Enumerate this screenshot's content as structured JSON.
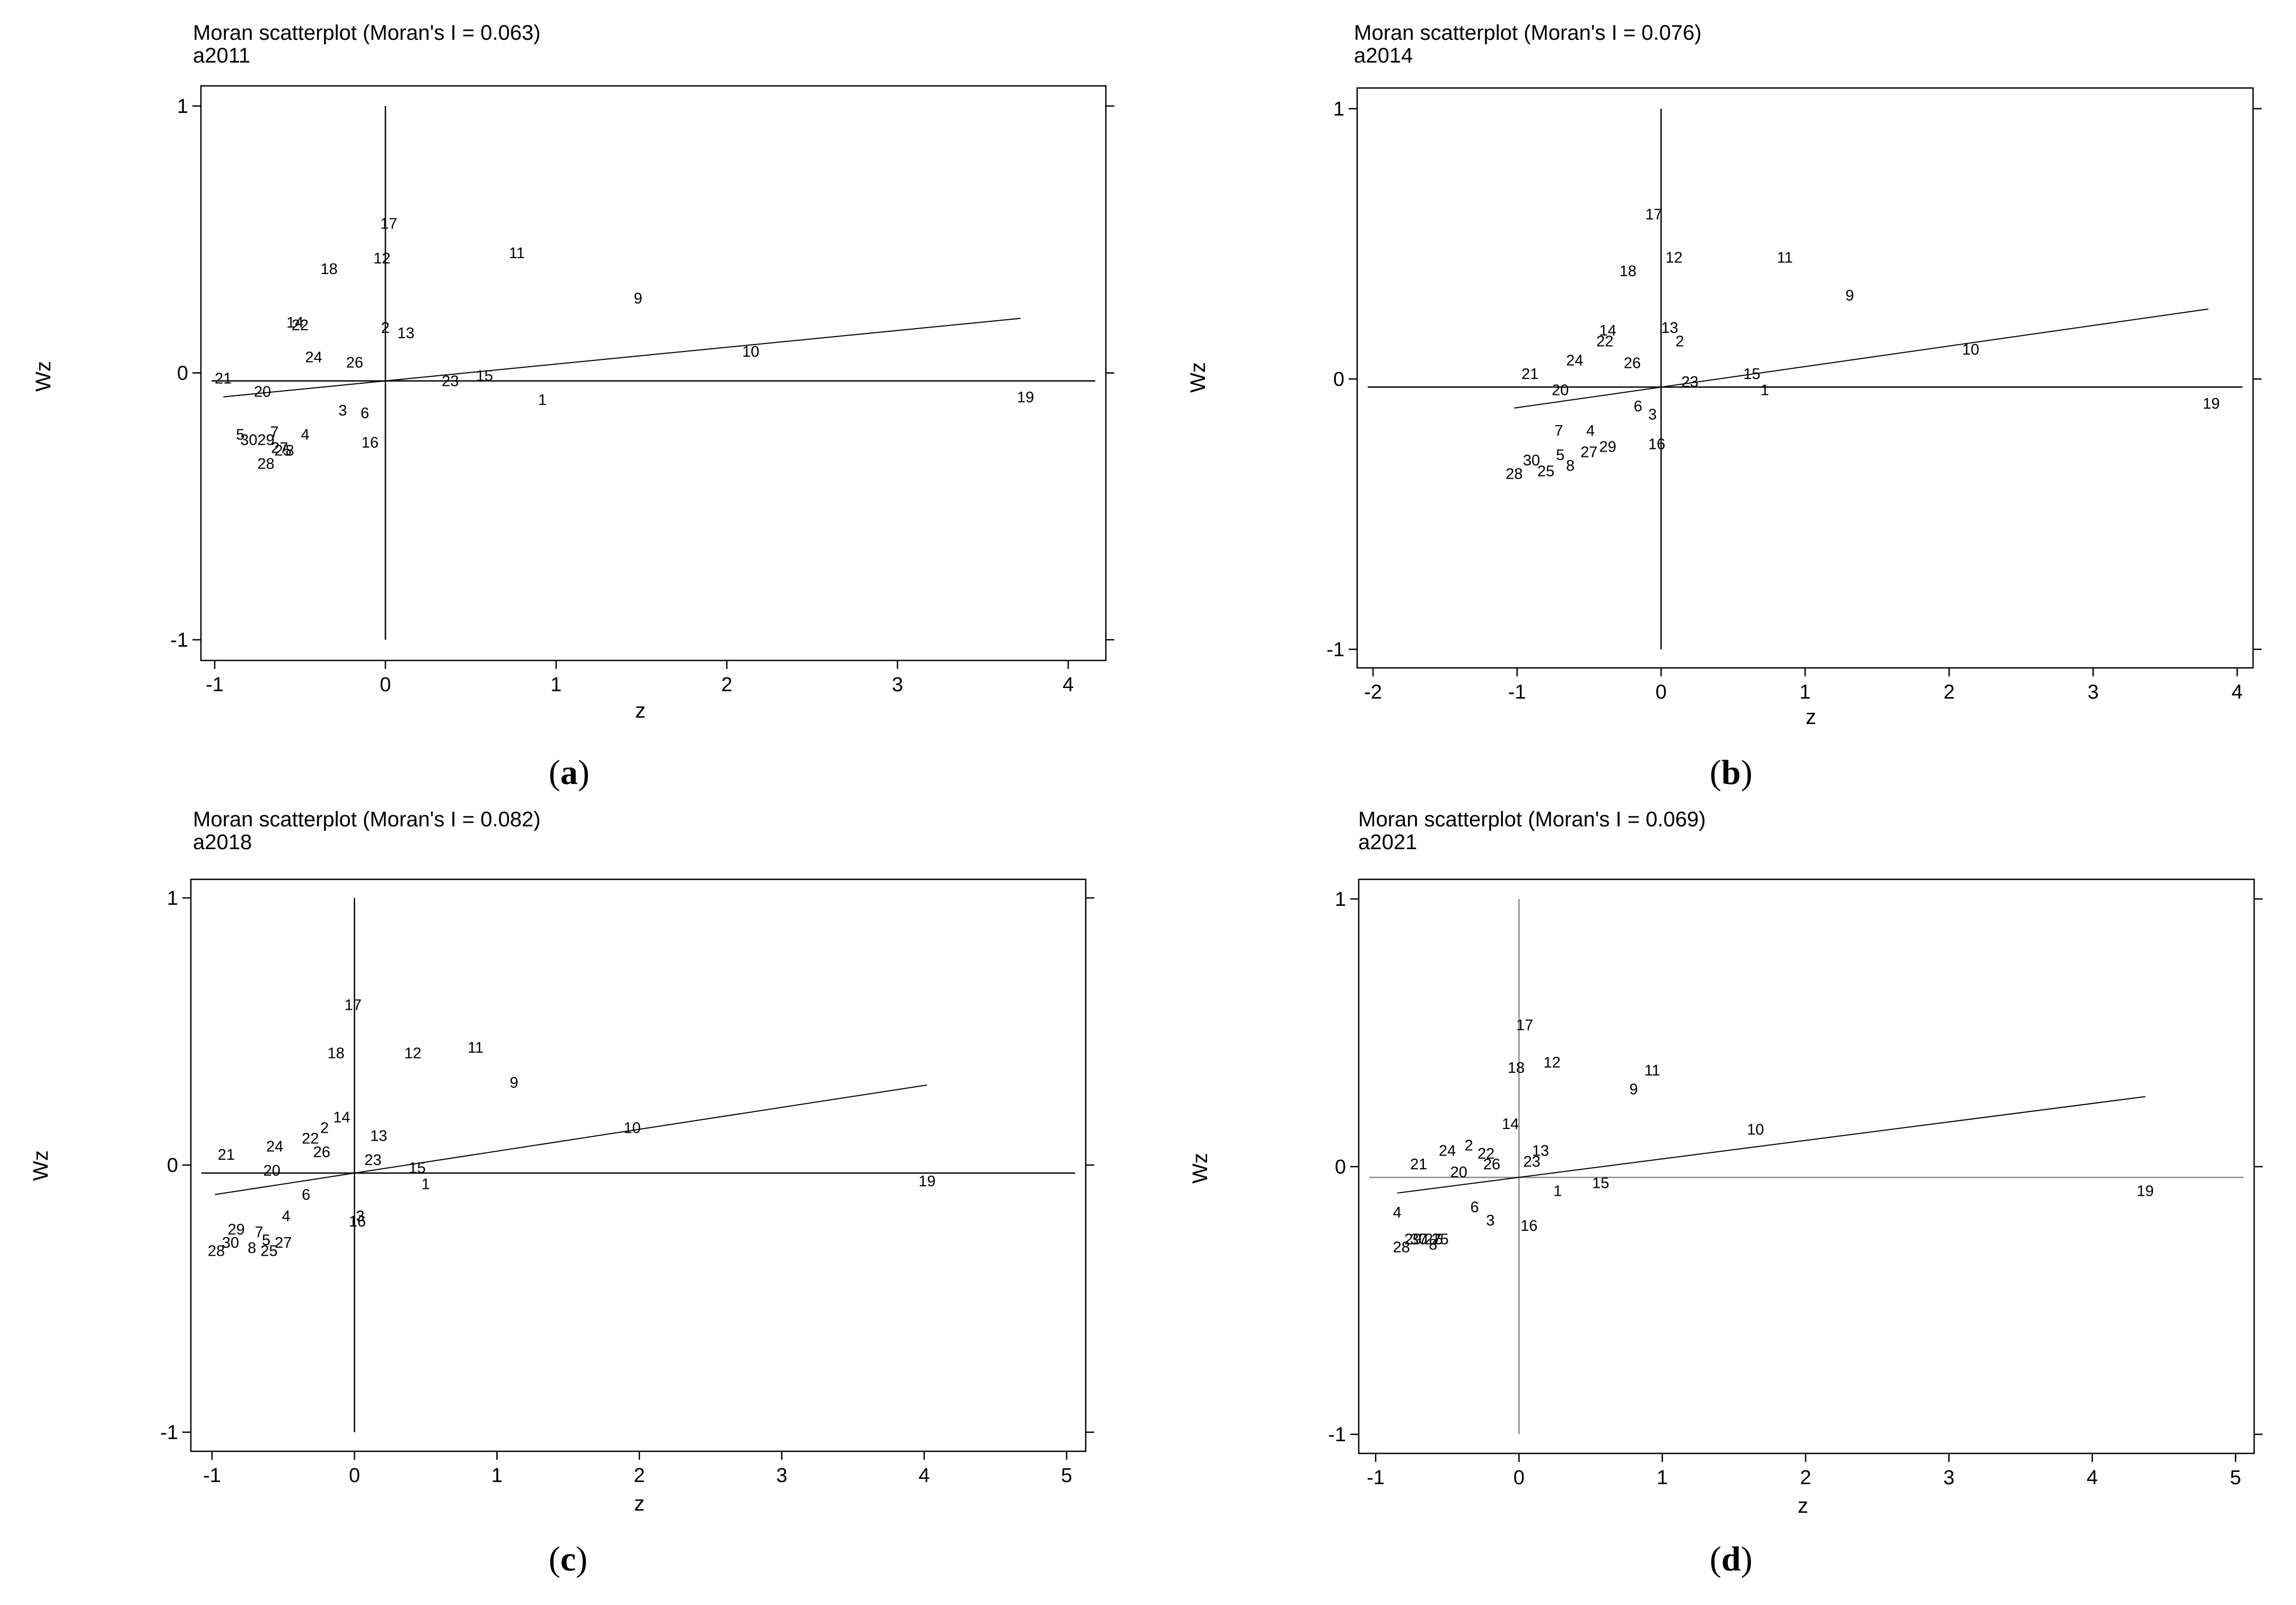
{
  "chart_data": [
    {
      "type": "scatter",
      "panel": "a",
      "title": "Moran scatterplot (Moran's I = 0.063)",
      "subtitle": "a2011",
      "xlabel": "z",
      "ylabel": "Wz",
      "xlim": [
        -1,
        4
      ],
      "ylim": [
        -1,
        1
      ],
      "xticks": [
        -1,
        0,
        1,
        2,
        3,
        4
      ],
      "yticks": [
        -1,
        0,
        1
      ],
      "moran_i": 0.063,
      "intercept": -0.03,
      "fit_x": [
        -0.95,
        3.72
      ],
      "points": [
        {
          "label": "1",
          "x": 0.92,
          "y": -0.1
        },
        {
          "label": "2",
          "x": 0.0,
          "y": 0.17
        },
        {
          "label": "3",
          "x": -0.25,
          "y": -0.14
        },
        {
          "label": "4",
          "x": -0.47,
          "y": -0.23
        },
        {
          "label": "5",
          "x": -0.85,
          "y": -0.23
        },
        {
          "label": "6",
          "x": -0.12,
          "y": -0.15
        },
        {
          "label": "7",
          "x": -0.65,
          "y": -0.22
        },
        {
          "label": "8",
          "x": -0.56,
          "y": -0.29
        },
        {
          "label": "9",
          "x": 1.48,
          "y": 0.28
        },
        {
          "label": "10",
          "x": 2.14,
          "y": 0.08
        },
        {
          "label": "11",
          "x": 0.77,
          "y": 0.45
        },
        {
          "label": "12",
          "x": -0.02,
          "y": 0.43
        },
        {
          "label": "13",
          "x": 0.12,
          "y": 0.15
        },
        {
          "label": "14",
          "x": -0.53,
          "y": 0.19
        },
        {
          "label": "15",
          "x": 0.58,
          "y": -0.01
        },
        {
          "label": "16",
          "x": -0.09,
          "y": -0.26
        },
        {
          "label": "17",
          "x": 0.02,
          "y": 0.56
        },
        {
          "label": "18",
          "x": -0.33,
          "y": 0.39
        },
        {
          "label": "19",
          "x": 3.75,
          "y": -0.09
        },
        {
          "label": "20",
          "x": -0.72,
          "y": -0.07
        },
        {
          "label": "21",
          "x": -0.95,
          "y": -0.02
        },
        {
          "label": "22",
          "x": -0.5,
          "y": 0.18
        },
        {
          "label": "23",
          "x": 0.38,
          "y": -0.03
        },
        {
          "label": "24",
          "x": -0.42,
          "y": 0.06
        },
        {
          "label": "25",
          "x": -0.6,
          "y": -0.29
        },
        {
          "label": "26",
          "x": -0.18,
          "y": 0.04
        },
        {
          "label": "27",
          "x": -0.62,
          "y": -0.28
        },
        {
          "label": "28",
          "x": -0.7,
          "y": -0.34
        },
        {
          "label": "29",
          "x": -0.7,
          "y": -0.25
        },
        {
          "label": "30",
          "x": -0.8,
          "y": -0.25
        }
      ]
    },
    {
      "type": "scatter",
      "panel": "b",
      "title": "Moran scatterplot (Moran's I = 0.076)",
      "subtitle": "a2014",
      "xlabel": "z",
      "ylabel": "Wz",
      "xlim": [
        -2,
        4
      ],
      "ylim": [
        -1,
        1
      ],
      "xticks": [
        -2,
        -1,
        0,
        1,
        2,
        3,
        4
      ],
      "yticks": [
        -1,
        0,
        1
      ],
      "moran_i": 0.076,
      "intercept": -0.03,
      "fit_x": [
        -1.02,
        3.8
      ],
      "points": [
        {
          "label": "1",
          "x": 0.72,
          "y": -0.04
        },
        {
          "label": "2",
          "x": 0.13,
          "y": 0.14
        },
        {
          "label": "3",
          "x": -0.06,
          "y": -0.13
        },
        {
          "label": "4",
          "x": -0.49,
          "y": -0.19
        },
        {
          "label": "5",
          "x": -0.7,
          "y": -0.28
        },
        {
          "label": "6",
          "x": -0.16,
          "y": -0.1
        },
        {
          "label": "7",
          "x": -0.71,
          "y": -0.19
        },
        {
          "label": "8",
          "x": -0.63,
          "y": -0.32
        },
        {
          "label": "9",
          "x": 1.31,
          "y": 0.31
        },
        {
          "label": "10",
          "x": 2.15,
          "y": 0.11
        },
        {
          "label": "11",
          "x": 0.86,
          "y": 0.45
        },
        {
          "label": "12",
          "x": 0.09,
          "y": 0.45
        },
        {
          "label": "13",
          "x": 0.06,
          "y": 0.19
        },
        {
          "label": "14",
          "x": -0.37,
          "y": 0.18
        },
        {
          "label": "15",
          "x": 0.63,
          "y": 0.02
        },
        {
          "label": "16",
          "x": -0.03,
          "y": -0.24
        },
        {
          "label": "17",
          "x": -0.05,
          "y": 0.61
        },
        {
          "label": "18",
          "x": -0.23,
          "y": 0.4
        },
        {
          "label": "19",
          "x": 3.82,
          "y": -0.09
        },
        {
          "label": "20",
          "x": -0.7,
          "y": -0.04
        },
        {
          "label": "21",
          "x": -0.91,
          "y": 0.02
        },
        {
          "label": "22",
          "x": -0.39,
          "y": 0.14
        },
        {
          "label": "23",
          "x": 0.2,
          "y": -0.01
        },
        {
          "label": "24",
          "x": -0.6,
          "y": 0.07
        },
        {
          "label": "25",
          "x": -0.8,
          "y": -0.34
        },
        {
          "label": "26",
          "x": -0.2,
          "y": 0.06
        },
        {
          "label": "27",
          "x": -0.5,
          "y": -0.27
        },
        {
          "label": "28",
          "x": -1.02,
          "y": -0.35
        },
        {
          "label": "29",
          "x": -0.37,
          "y": -0.25
        },
        {
          "label": "30",
          "x": -0.9,
          "y": -0.3
        }
      ]
    },
    {
      "type": "scatter",
      "panel": "c",
      "title": "Moran scatterplot (Moran's I = 0.082)",
      "subtitle": "a2018",
      "xlabel": "z",
      "ylabel": "Wz",
      "xlim": [
        -1,
        5
      ],
      "ylim": [
        -1,
        1
      ],
      "xticks": [
        -1,
        0,
        1,
        2,
        3,
        4,
        5
      ],
      "yticks": [
        -1,
        0,
        1
      ],
      "moran_i": 0.082,
      "intercept": -0.03,
      "fit_x": [
        -0.98,
        4.02
      ],
      "points": [
        {
          "label": "1",
          "x": 0.5,
          "y": -0.07
        },
        {
          "label": "2",
          "x": -0.21,
          "y": 0.14
        },
        {
          "label": "3",
          "x": 0.04,
          "y": -0.19
        },
        {
          "label": "4",
          "x": -0.48,
          "y": -0.19
        },
        {
          "label": "5",
          "x": -0.62,
          "y": -0.28
        },
        {
          "label": "6",
          "x": -0.34,
          "y": -0.11
        },
        {
          "label": "7",
          "x": -0.67,
          "y": -0.25
        },
        {
          "label": "8",
          "x": -0.72,
          "y": -0.31
        },
        {
          "label": "9",
          "x": 1.12,
          "y": 0.31
        },
        {
          "label": "10",
          "x": 1.95,
          "y": 0.14
        },
        {
          "label": "11",
          "x": 0.85,
          "y": 0.44
        },
        {
          "label": "12",
          "x": 0.41,
          "y": 0.42
        },
        {
          "label": "13",
          "x": 0.17,
          "y": 0.11
        },
        {
          "label": "14",
          "x": -0.09,
          "y": 0.18
        },
        {
          "label": "15",
          "x": 0.44,
          "y": -0.01
        },
        {
          "label": "16",
          "x": 0.02,
          "y": -0.21
        },
        {
          "label": "17",
          "x": -0.01,
          "y": 0.6
        },
        {
          "label": "18",
          "x": -0.13,
          "y": 0.42
        },
        {
          "label": "19",
          "x": 4.02,
          "y": -0.06
        },
        {
          "label": "20",
          "x": -0.58,
          "y": -0.02
        },
        {
          "label": "21",
          "x": -0.9,
          "y": 0.04
        },
        {
          "label": "22",
          "x": -0.31,
          "y": 0.1
        },
        {
          "label": "23",
          "x": 0.13,
          "y": 0.02
        },
        {
          "label": "24",
          "x": -0.56,
          "y": 0.07
        },
        {
          "label": "25",
          "x": -0.6,
          "y": -0.32
        },
        {
          "label": "26",
          "x": -0.23,
          "y": 0.05
        },
        {
          "label": "27",
          "x": -0.5,
          "y": -0.29
        },
        {
          "label": "28",
          "x": -0.97,
          "y": -0.32
        },
        {
          "label": "29",
          "x": -0.83,
          "y": -0.24
        },
        {
          "label": "30",
          "x": -0.87,
          "y": -0.29
        }
      ]
    },
    {
      "type": "scatter",
      "panel": "d",
      "title": "Moran scatterplot (Moran's I = 0.069)",
      "subtitle": "a2021",
      "xlabel": "z",
      "ylabel": "Wz",
      "xlim": [
        -1,
        5
      ],
      "ylim": [
        -1,
        1
      ],
      "xticks": [
        -1,
        0,
        1,
        2,
        3,
        4,
        5
      ],
      "yticks": [
        -1,
        0,
        1
      ],
      "moran_i": 0.069,
      "intercept": -0.04,
      "fit_x": [
        -0.85,
        4.37
      ],
      "points": [
        {
          "label": "1",
          "x": 0.27,
          "y": -0.09
        },
        {
          "label": "2",
          "x": -0.35,
          "y": 0.08
        },
        {
          "label": "3",
          "x": -0.2,
          "y": -0.2
        },
        {
          "label": "4",
          "x": -0.85,
          "y": -0.17
        },
        {
          "label": "5",
          "x": -0.56,
          "y": -0.27
        },
        {
          "label": "6",
          "x": -0.31,
          "y": -0.15
        },
        {
          "label": "7",
          "x": -0.67,
          "y": -0.27
        },
        {
          "label": "8",
          "x": -0.6,
          "y": -0.29
        },
        {
          "label": "9",
          "x": 0.8,
          "y": 0.29
        },
        {
          "label": "10",
          "x": 1.65,
          "y": 0.14
        },
        {
          "label": "11",
          "x": 0.93,
          "y": 0.36
        },
        {
          "label": "12",
          "x": 0.23,
          "y": 0.39
        },
        {
          "label": "13",
          "x": 0.15,
          "y": 0.06
        },
        {
          "label": "14",
          "x": -0.06,
          "y": 0.16
        },
        {
          "label": "15",
          "x": 0.57,
          "y": -0.06
        },
        {
          "label": "16",
          "x": 0.07,
          "y": -0.22
        },
        {
          "label": "17",
          "x": 0.04,
          "y": 0.53
        },
        {
          "label": "18",
          "x": -0.02,
          "y": 0.37
        },
        {
          "label": "19",
          "x": 4.37,
          "y": -0.09
        },
        {
          "label": "20",
          "x": -0.42,
          "y": -0.02
        },
        {
          "label": "21",
          "x": -0.7,
          "y": 0.01
        },
        {
          "label": "22",
          "x": -0.23,
          "y": 0.05
        },
        {
          "label": "23",
          "x": 0.09,
          "y": 0.02
        },
        {
          "label": "24",
          "x": -0.5,
          "y": 0.06
        },
        {
          "label": "25",
          "x": -0.55,
          "y": -0.27
        },
        {
          "label": "26",
          "x": -0.19,
          "y": 0.01
        },
        {
          "label": "27",
          "x": -0.6,
          "y": -0.27
        },
        {
          "label": "28",
          "x": -0.82,
          "y": -0.3
        },
        {
          "label": "29",
          "x": -0.74,
          "y": -0.27
        },
        {
          "label": "30",
          "x": -0.7,
          "y": -0.27
        }
      ]
    }
  ],
  "captions": [
    "a",
    "b",
    "c",
    "d"
  ]
}
